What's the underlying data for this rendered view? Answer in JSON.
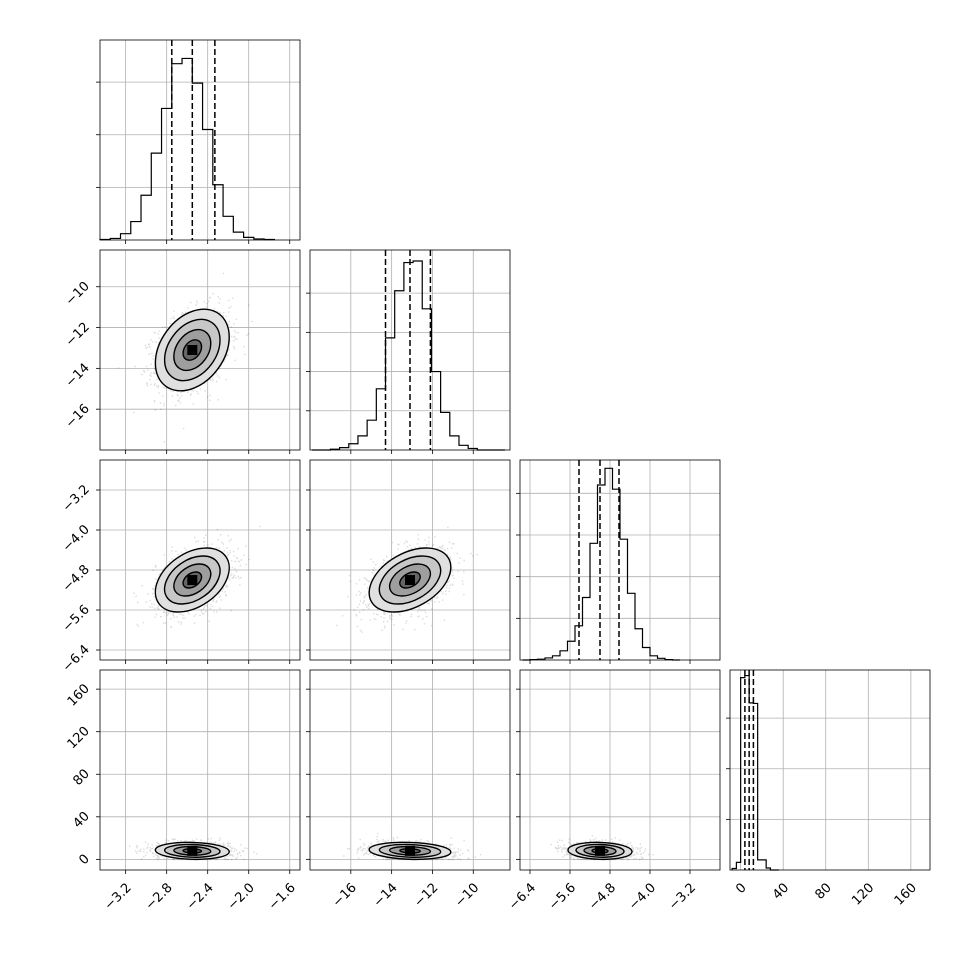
{
  "chart_data": {
    "type": "corner",
    "grid": true,
    "colors": {
      "line": "#000000",
      "grid": "#b0b0b0",
      "density": "#000000"
    },
    "parameters": [
      {
        "center": -2.55,
        "sigma": 0.18,
        "quantiles": [
          -2.75,
          -2.55,
          -2.33
        ],
        "range": [
          -3.45,
          -1.5
        ],
        "ticks": [
          -3.2,
          -2.8,
          -2.4,
          -2.0,
          -1.6
        ],
        "tick_labels": [
          "−3.2",
          "−2.8",
          "−2.4",
          "−2.0",
          "−1.6"
        ]
      },
      {
        "center": -13.1,
        "sigma": 1.0,
        "quantiles": [
          -14.3,
          -13.1,
          -12.1
        ],
        "range": [
          -18.0,
          -8.2
        ],
        "ticks": [
          -16,
          -14,
          -12,
          -10
        ],
        "tick_labels": [
          "−16",
          "−14",
          "−12",
          "−10"
        ]
      },
      {
        "center": -5.0,
        "sigma": 0.32,
        "quantiles": [
          -5.42,
          -5.0,
          -4.62
        ],
        "range": [
          -6.6,
          -2.6
        ],
        "ticks": [
          -6.4,
          -5.6,
          -4.8,
          -4.0,
          -3.2
        ],
        "tick_labels": [
          "−6.4",
          "−5.6",
          "−4.8",
          "−4.0",
          "−3.2"
        ]
      },
      {
        "center": 8.0,
        "sigma": 4.0,
        "quantiles": [
          4.0,
          8.0,
          12.0
        ],
        "range": [
          -10.0,
          178.0
        ],
        "ticks": [
          0,
          40,
          80,
          120,
          160
        ],
        "tick_labels": [
          "0",
          "40",
          "80",
          "120",
          "160"
        ]
      }
    ],
    "histograms": [
      {
        "parameter": 0,
        "bin_edges": [
          -3.45,
          -3.35,
          -3.25,
          -3.15,
          -3.05,
          -2.95,
          -2.85,
          -2.75,
          -2.65,
          -2.55,
          -2.45,
          -2.35,
          -2.25,
          -2.15,
          -2.05,
          -1.95,
          -1.85,
          -1.75
        ],
        "counts": [
          1,
          3,
          12,
          35,
          85,
          165,
          250,
          335,
          345,
          298,
          210,
          105,
          45,
          15,
          5,
          2,
          1
        ],
        "ylim": [
          0,
          380
        ],
        "yticks": [
          100,
          200,
          300
        ]
      },
      {
        "parameter": 1,
        "bin_edges": [
          -17.9,
          -17.45,
          -17.0,
          -16.55,
          -16.1,
          -15.65,
          -15.2,
          -14.75,
          -14.3,
          -13.85,
          -13.4,
          -12.95,
          -12.5,
          -12.05,
          -11.6,
          -11.15,
          -10.7,
          -10.25,
          -9.8,
          -9.35,
          -8.9,
          -8.45
        ],
        "counts": [
          0,
          0,
          1,
          3,
          8,
          18,
          38,
          78,
          143,
          203,
          239,
          241,
          180,
          100,
          48,
          18,
          6,
          2,
          0,
          0,
          0
        ],
        "ylim": [
          0,
          255
        ],
        "yticks": [
          50,
          100,
          150,
          200
        ]
      },
      {
        "parameter": 2,
        "bin_edges": [
          -6.55,
          -6.4,
          -6.25,
          -6.1,
          -5.95,
          -5.8,
          -5.65,
          -5.5,
          -5.35,
          -5.2,
          -5.05,
          -4.9,
          -4.75,
          -4.6,
          -4.45,
          -4.3,
          -4.15,
          -4.0,
          -3.85,
          -3.7,
          -3.55,
          -3.4
        ],
        "counts": [
          0,
          1,
          2,
          5,
          10,
          22,
          45,
          82,
          150,
          280,
          420,
          460,
          410,
          290,
          160,
          75,
          30,
          10,
          4,
          1,
          0
        ],
        "ylim": [
          0,
          480
        ],
        "yticks": [
          100,
          200,
          300,
          400
        ]
      },
      {
        "parameter": 3,
        "bin_edges": [
          -8,
          -4,
          0,
          4,
          8,
          12,
          16,
          20,
          24,
          28,
          32,
          36
        ],
        "counts": [
          3,
          15,
          380,
          384,
          330,
          329,
          20,
          20,
          4,
          0,
          0
        ],
        "ylim": [
          0,
          395
        ],
        "yticks": [
          100,
          200,
          300
        ]
      }
    ],
    "pairs": [
      {
        "x": 0,
        "y": 1,
        "correlation": 0.32
      },
      {
        "x": 0,
        "y": 2,
        "correlation": 0.38
      },
      {
        "x": 1,
        "y": 2,
        "correlation": 0.4
      },
      {
        "x": 0,
        "y": 3,
        "correlation": -0.1
      },
      {
        "x": 1,
        "y": 3,
        "correlation": -0.15
      },
      {
        "x": 2,
        "y": 3,
        "correlation": -0.1
      }
    ],
    "contour_levels_sigma": [
      0.5,
      1.0,
      1.5,
      2.0
    ]
  }
}
